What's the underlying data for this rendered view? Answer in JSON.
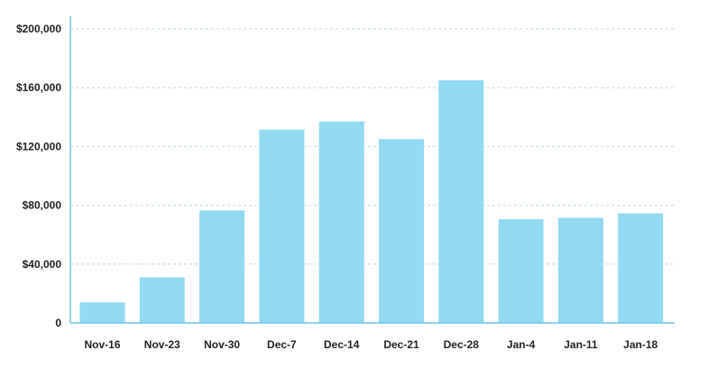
{
  "chart_data": {
    "type": "bar",
    "categories": [
      "Nov-16",
      "Nov-23",
      "Nov-30",
      "Dec-7",
      "Dec-14",
      "Dec-21",
      "Dec-28",
      "Jan-4",
      "Jan-11",
      "Jan-18"
    ],
    "values": [
      14000,
      31000,
      76500,
      131500,
      137000,
      125000,
      165000,
      70500,
      71500,
      74500
    ],
    "ylim": [
      0,
      200000
    ],
    "yticks": [
      0,
      40000,
      80000,
      120000,
      160000,
      200000
    ],
    "ytick_labels": [
      "0",
      "$40,000",
      "$80,000",
      "$120,000",
      "$160,000",
      "$200,000"
    ],
    "title": "",
    "xlabel": "",
    "ylabel": "",
    "grid": true,
    "grid_style": "dashed",
    "bar_color": "#92d9f2",
    "grid_color": "#b9d9ea",
    "axis_color": "#6fc7e6",
    "label_color": "#222222"
  }
}
